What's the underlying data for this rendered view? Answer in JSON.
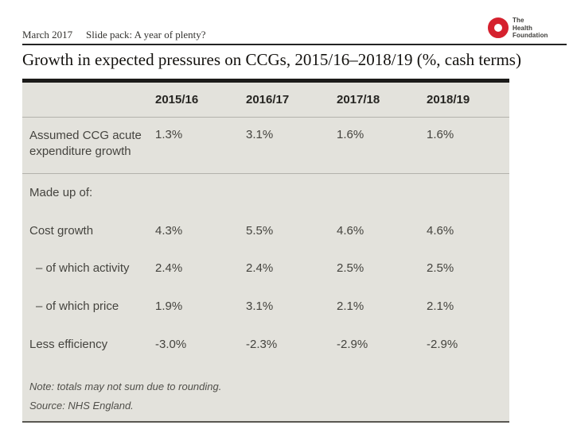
{
  "meta": {
    "date": "March 2017",
    "pack_name": "Slide pack: A year of plenty?"
  },
  "logo": {
    "line1": "The",
    "line2": "Health",
    "line3": "Foundation"
  },
  "title": "Growth in expected pressures on CCGs, 2015/16–2018/19 (%, cash terms)",
  "colors": {
    "brand_red": "#d5212e",
    "table_background": "#e3e2dc",
    "top_rule": "#1c1b19",
    "divider": "#b3b2ac"
  },
  "chart_data": {
    "type": "table",
    "columns": [
      "",
      "2015/16",
      "2016/17",
      "2017/18",
      "2018/19"
    ],
    "rows": [
      {
        "label": "Assumed CCG acute expenditure growth",
        "values": [
          "1.3%",
          "3.1%",
          "1.6%",
          "1.6%"
        ]
      },
      {
        "label": "Made up of:",
        "values": [
          "",
          "",
          "",
          ""
        ]
      },
      {
        "label": "Cost growth",
        "values": [
          "4.3%",
          "5.5%",
          "4.6%",
          "4.6%"
        ]
      },
      {
        "label": "– of which activity",
        "values": [
          "2.4%",
          "2.4%",
          "2.5%",
          "2.5%"
        ]
      },
      {
        "label": "– of which price",
        "values": [
          "1.9%",
          "3.1%",
          "2.1%",
          "2.1%"
        ]
      },
      {
        "label": "Less efficiency",
        "values": [
          "-3.0%",
          "-2.3%",
          "-2.9%",
          "-2.9%"
        ]
      }
    ],
    "note": "Note: totals may not sum due to rounding.",
    "source": "Source: NHS England."
  }
}
